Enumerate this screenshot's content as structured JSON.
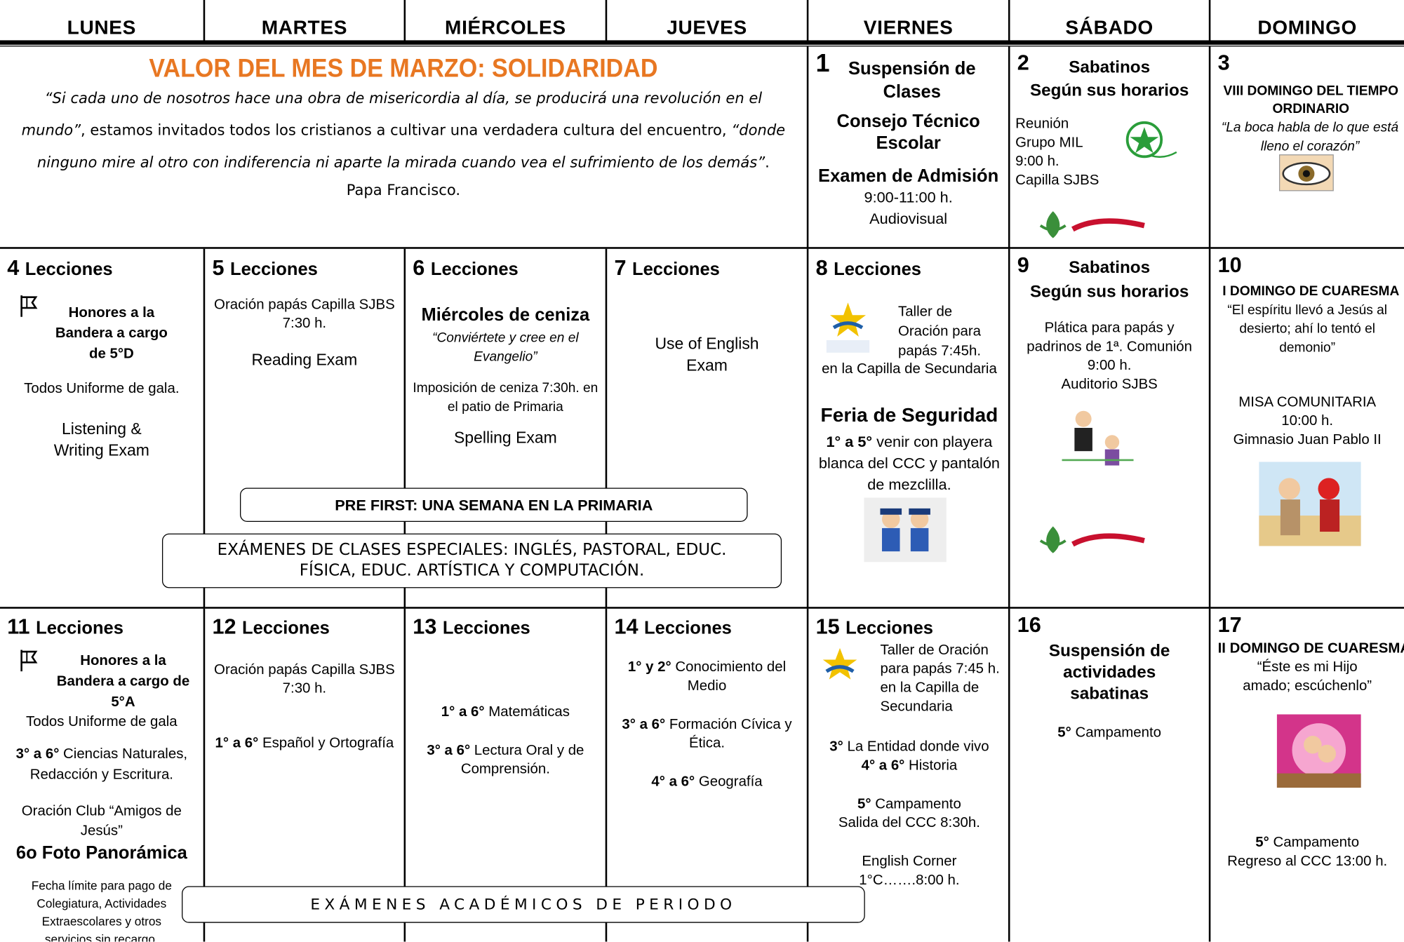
{
  "header": {
    "days": [
      "LUNES",
      "MARTES",
      "MIÉRCOLES",
      "JUEVES",
      "VIERNES",
      "SÁBADO",
      "DOMINGO"
    ]
  },
  "value_of_month": {
    "title": "VALOR DEL MES DE MARZO: SOLIDARIDAD",
    "quote_1": "“Si cada uno de nosotros hace una obra de misericordia al día, se producirá una revolución en el mundo”",
    "text": ", estamos invitados todos los cristianos a cultivar una verdadera cultura del encuentro, ",
    "quote_2": "“donde ninguno mire al otro con indiferencia ni aparte la mirada cuando vea el sufrimiento de los demás”",
    "period": ".",
    "author": "Papa Francisco."
  },
  "cells": [
    {
      "number": "1",
      "lines": [
        "Suspensión de Clases",
        "Consejo Técnico Escolar",
        "Examen de Admisión",
        "9:00-11:00 h.",
        "Audiovisual"
      ]
    },
    {
      "number": "2",
      "lines": [
        "Sabatinos",
        "Según sus horarios",
        "Reunión",
        "Grupo MIL",
        "9:00 h.",
        "Capilla SJBS"
      ]
    },
    {
      "number": "3",
      "lines": [
        "VIII DOMINGO DEL TIEMPO ORDINARIO",
        "“La boca habla de lo que está lleno el corazón”"
      ]
    },
    {
      "number": "4",
      "lines": [
        "Lecciones",
        "Honores a la Bandera a cargo de 5°D",
        "Todos Uniforme de gala.",
        "Listening & Writing Exam"
      ]
    },
    {
      "number": "5",
      "lines": [
        "Lecciones",
        "Oración papás Capilla SJBS 7:30 h.",
        "Reading Exam"
      ]
    },
    {
      "number": "6",
      "lines": [
        "Lecciones",
        "Miércoles de ceniza",
        "“Conviértete y cree en el Evangelio”",
        "Imposición  de ceniza 7:30h. en el patio de Primaria",
        "Spelling Exam"
      ]
    },
    {
      "number": "7",
      "lines": [
        "Lecciones",
        "Use of English Exam"
      ]
    },
    {
      "number": "8",
      "lines": [
        "Lecciones",
        "Taller de Oración para papás 7:45h.",
        "en la Capilla de Secundaria",
        "Feria de Seguridad",
        {
          "b": "1° a 5°",
          "t": " venir con playera blanca del CCC y pantalón de mezclilla."
        }
      ]
    },
    {
      "number": "9",
      "lines": [
        "Sabatinos",
        "Según sus horarios",
        "Plática para papás y padrinos de 1ª. Comunión",
        "9:00 h.",
        "Auditorio SJBS"
      ]
    },
    {
      "number": "10",
      "lines": [
        "I DOMINGO DE CUARESMA",
        "“El espíritu llevó a Jesús al desierto; ahí lo tentó el demonio”",
        "MISA COMUNITARIA",
        "10:00 h.",
        "Gimnasio Juan Pablo II"
      ]
    },
    {
      "number": "11",
      "lines": [
        "Lecciones",
        "Honores a la Bandera a cargo de 5°A",
        "Todos Uniforme de gala",
        {
          "b": "3° a 6°",
          "t": " Ciencias Naturales, Redacción y Escritura."
        },
        "Oración Club “Amigos de Jesús”",
        "6o Foto Panorámica",
        "Fecha límite para pago de Colegiatura, Actividades Extraescolares y otros servicios sin recargo."
      ]
    },
    {
      "number": "12",
      "lines": [
        "Lecciones",
        "Oración papás Capilla SJBS 7:30 h.",
        {
          "b": "1° a 6°",
          "t": " Español y Ortografía"
        }
      ]
    },
    {
      "number": "13",
      "lines": [
        "Lecciones",
        {
          "b": "1° a 6°",
          "t": " Matemáticas"
        },
        {
          "b": "3° a 6°",
          "t": " Lectura Oral y de Comprensión."
        }
      ]
    },
    {
      "number": "14",
      "lines": [
        "Lecciones",
        {
          "b": "1° y 2°",
          "t": " Conocimiento del Medio"
        },
        {
          "b": "3° a 6°",
          "t": " Formación Cívica y Ética."
        },
        {
          "b": "4° a 6°",
          "t": " Geografía"
        }
      ]
    },
    {
      "number": "15",
      "lines": [
        "Lecciones",
        "Taller de Oración para papás 7:45 h. en la Capilla de Secundaria",
        {
          "b": "3°",
          "t": " La Entidad donde vivo"
        },
        {
          "b": "4° a 6°",
          "t": " Historia"
        },
        {
          "b": "5°",
          "t": " Campamento"
        },
        "Salida del CCC 8:30h.",
        "English Corner",
        "1°C…….8:00 h."
      ]
    },
    {
      "number": "16",
      "lines": [
        "Suspensión de actividades sabatinas",
        {
          "b": "5°",
          "t": " Campamento"
        }
      ]
    },
    {
      "number": "17",
      "lines": [
        "II DOMINGO DE CUARESMA",
        "“Éste es mi Hijo amado; escúchenlo”",
        {
          "b": "5°",
          "t": " Campamento"
        },
        "Regreso al CCC 13:00 h."
      ]
    }
  ],
  "banners": [
    "PRE FIRST: UNA SEMANA EN LA PRIMARIA",
    "EXÁMENES DE CLASES ESPECIALES: INGLÉS, PASTORAL, EDUC. FÍSICA, EDUC. ARTÍSTICA Y COMPUTACIÓN.",
    "EXÁMENES ACADÉMICOS DE PERIODO"
  ]
}
